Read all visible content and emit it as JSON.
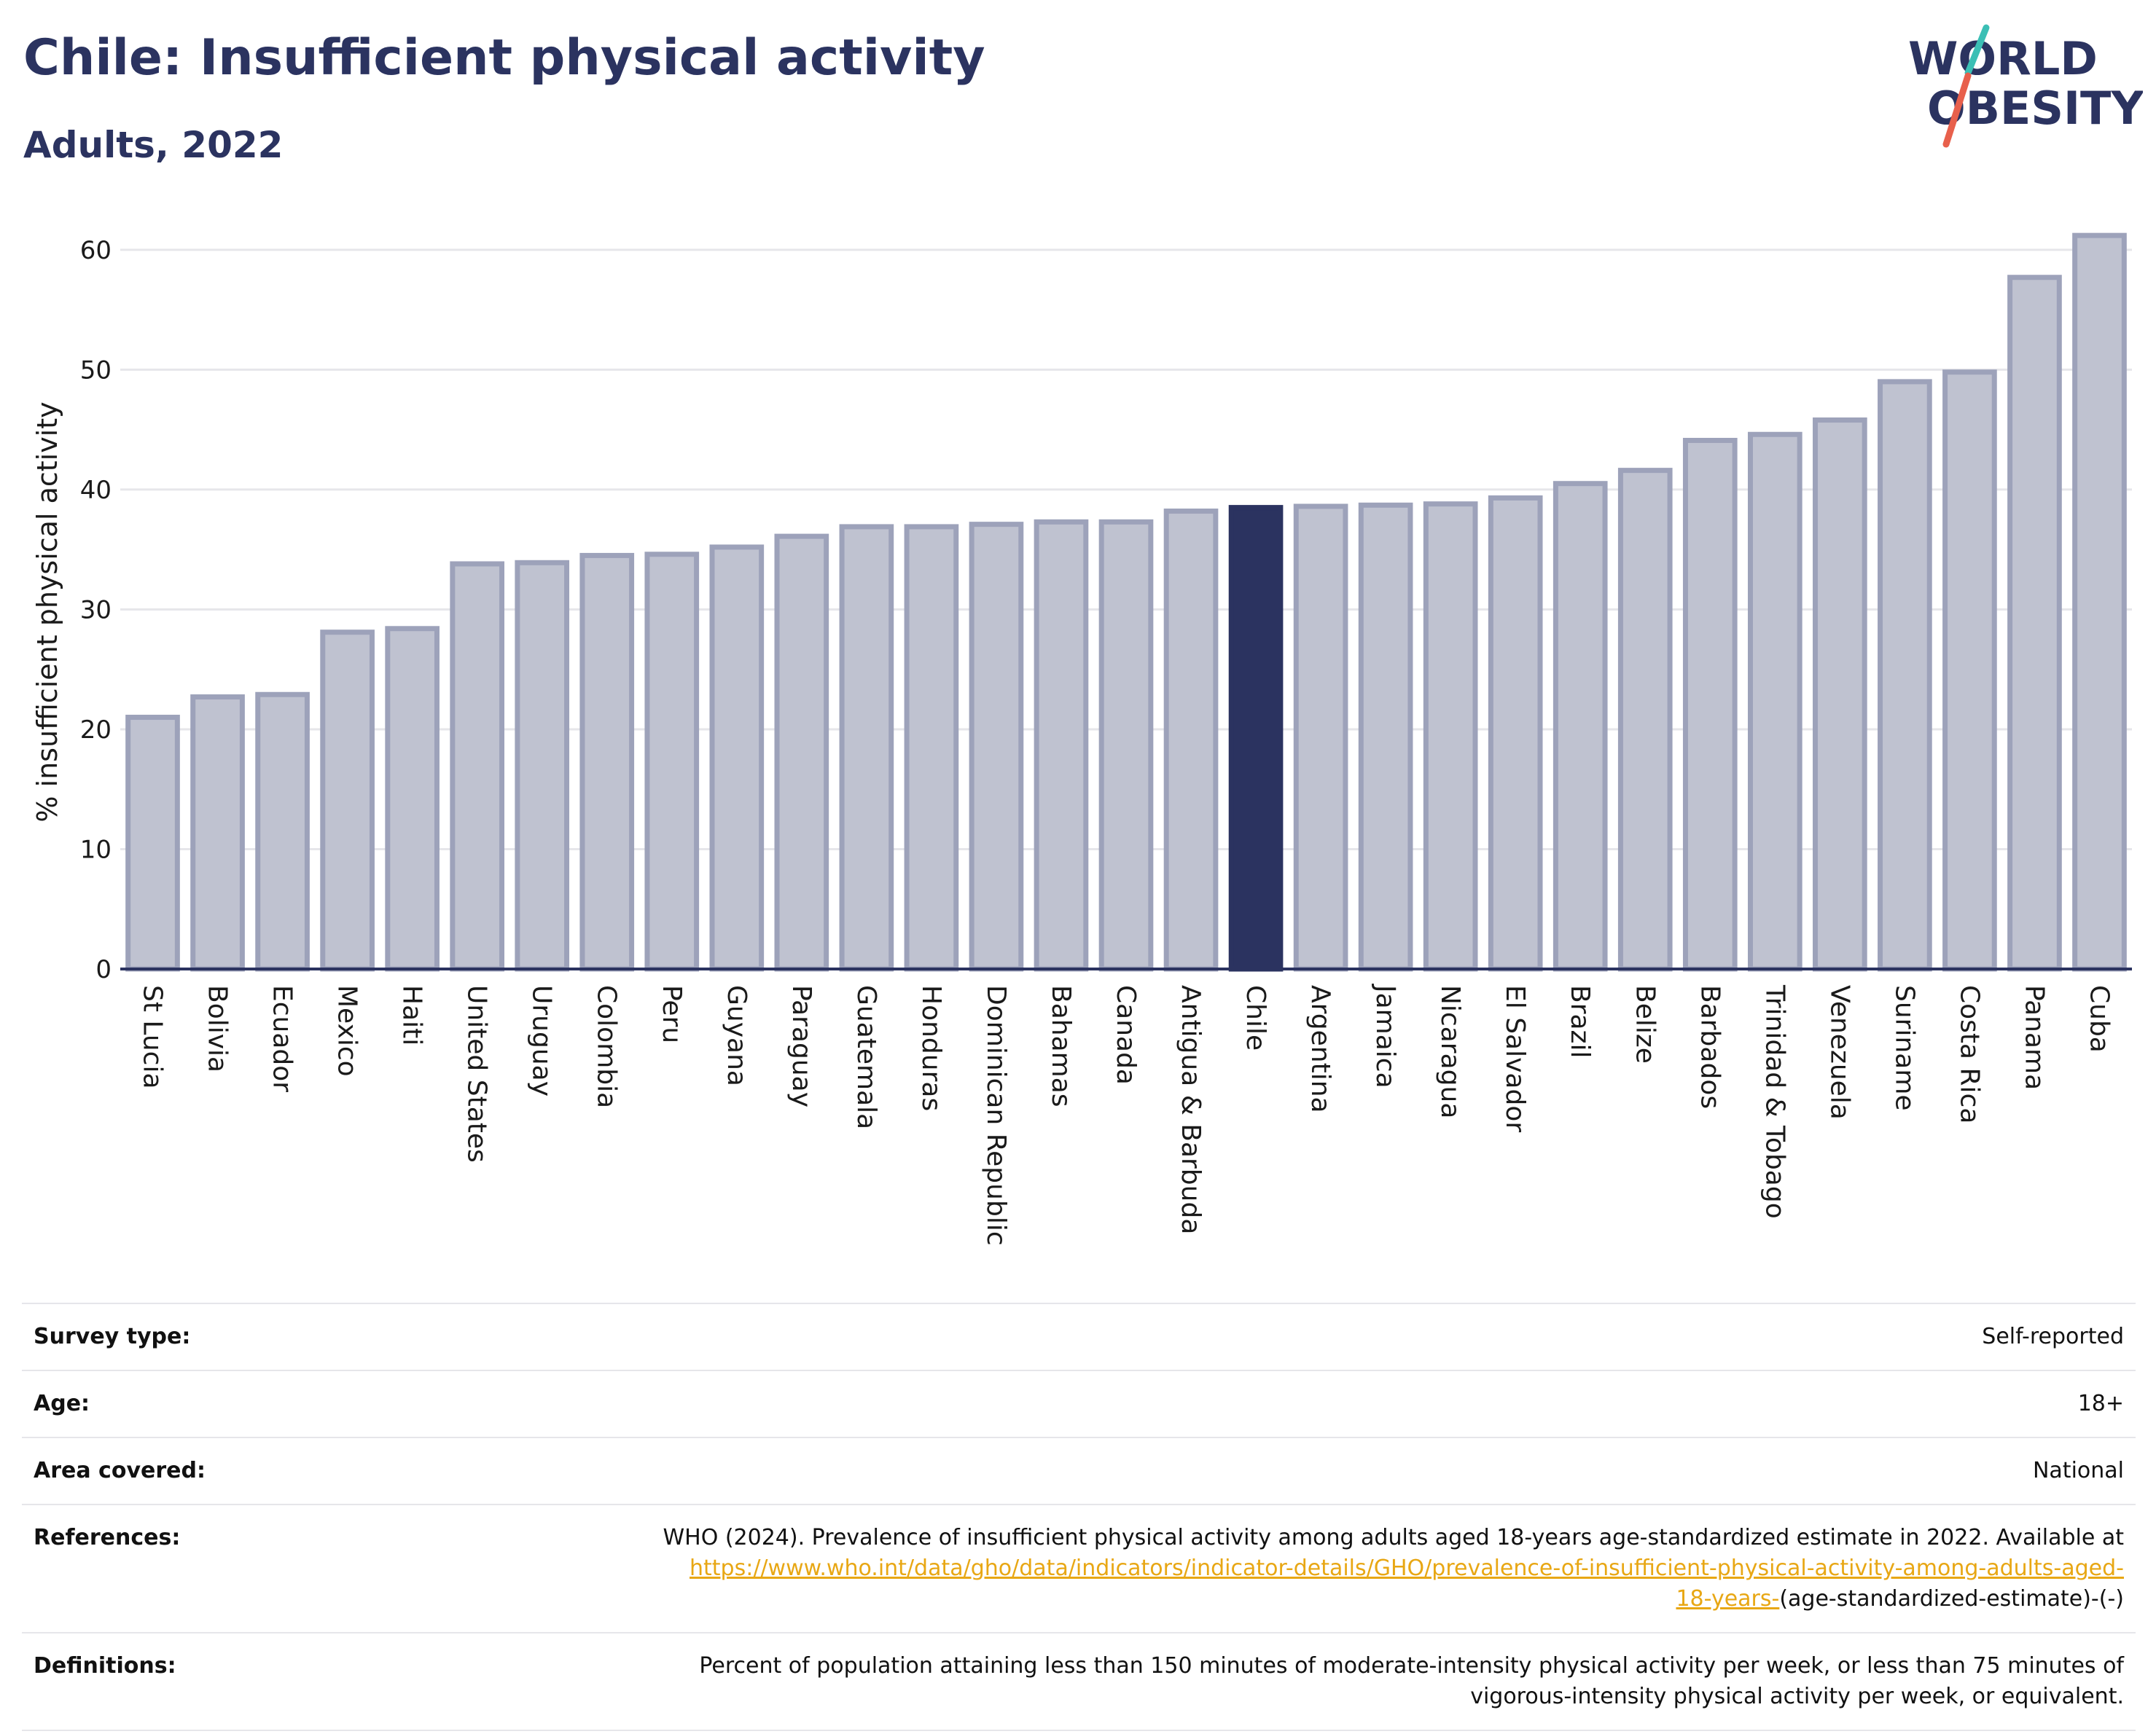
{
  "header": {
    "title": "Chile: Insufficient physical activity",
    "subtitle": "Adults, 2022"
  },
  "logo": {
    "line1": "WORLD",
    "line2": "OBESITY",
    "colors": {
      "text": "#2b3360",
      "slash_top": "#3bbfb5",
      "slash_bottom": "#e8604c"
    }
  },
  "chart_data": {
    "type": "bar",
    "title": "",
    "xlabel": "",
    "ylabel": "% insufficient physical activity",
    "ylim": [
      0,
      62
    ],
    "yticks": [
      0,
      10,
      20,
      30,
      40,
      50,
      60
    ],
    "grid": true,
    "highlight": "Chile",
    "colors": {
      "bar": "#bfc2d0",
      "bar_border": "#9da2ba",
      "highlight": "#2b3360",
      "grid": "#e6e6ea",
      "axis": "#2b3360"
    },
    "categories": [
      "St Lucia",
      "Bolivia",
      "Ecuador",
      "Mexico",
      "Haiti",
      "United States",
      "Uruguay",
      "Colombia",
      "Peru",
      "Guyana",
      "Paraguay",
      "Guatemala",
      "Honduras",
      "Dominican Republic",
      "Bahamas",
      "Canada",
      "Antigua & Barbuda",
      "Chile",
      "Argentina",
      "Jamaica",
      "Nicaragua",
      "El Salvador",
      "Brazil",
      "Belize",
      "Barbados",
      "Trinidad & Tobago",
      "Venezuela",
      "Suriname",
      "Costa Rica",
      "Panama",
      "Cuba"
    ],
    "values": [
      21.0,
      22.7,
      22.9,
      28.1,
      28.4,
      33.8,
      33.9,
      34.5,
      34.6,
      35.2,
      36.1,
      36.9,
      36.9,
      37.1,
      37.3,
      37.3,
      38.2,
      38.5,
      38.6,
      38.7,
      38.8,
      39.3,
      40.5,
      41.6,
      44.1,
      44.6,
      45.8,
      49.0,
      49.8,
      57.7,
      61.2
    ]
  },
  "info": {
    "survey_type_label": "Survey type:",
    "survey_type_value": "Self-reported",
    "age_label": "Age:",
    "age_value": "18+",
    "area_label": "Area covered:",
    "area_value": "National",
    "references_label": "References:",
    "references_text": "WHO (2024). Prevalence of insufficient physical activity among adults aged 18-years age-standardized estimate in 2022. Available at",
    "references_link_line1": "https://www.who.int/data/gho/data/indicators/indicator-details/GHO/prevalence-of-insufficient-physical-activity-among-adults-aged-",
    "references_link_line2": "18-years-",
    "references_tail": "(age-standardized-estimate)-(-)",
    "definitions_label": "Definitions:",
    "definitions_line1": "Percent of population attaining less than 150 minutes of moderate-intensity physical activity per week, or less than 75 minutes of",
    "definitions_line2": "vigorous-intensity physical activity per week, or equivalent."
  }
}
